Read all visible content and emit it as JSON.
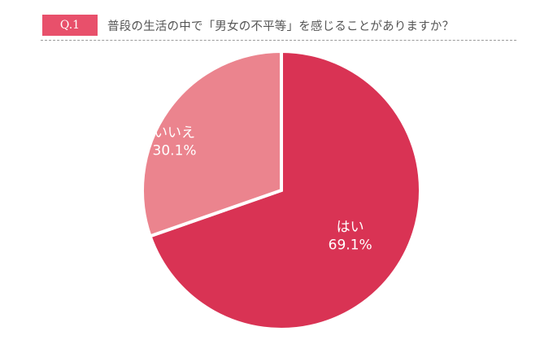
{
  "header": {
    "badge": "Q.1",
    "question": "普段の生活の中で「男女の不平等」を感じることがありますか？"
  },
  "chart_data": {
    "type": "pie",
    "categories": [
      "はい",
      "いいえ"
    ],
    "values": [
      69.1,
      30.1
    ],
    "value_labels": [
      "69.1%",
      "30.1%"
    ],
    "colors": [
      "#d93354",
      "#eb848e"
    ],
    "start_angle": "12 o'clock",
    "direction": "clockwise",
    "legend": "none"
  }
}
